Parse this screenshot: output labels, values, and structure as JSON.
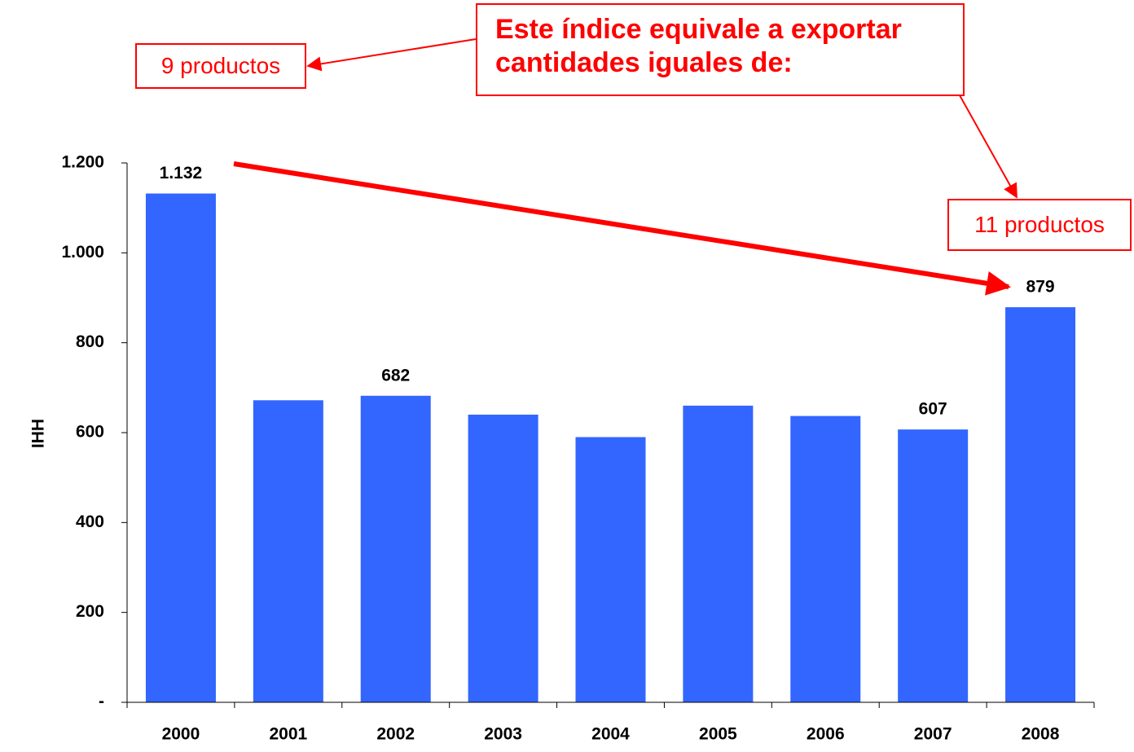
{
  "chart_data": {
    "type": "bar",
    "categories": [
      "2000",
      "2001",
      "2002",
      "2003",
      "2004",
      "2005",
      "2006",
      "2007",
      "2008"
    ],
    "values": [
      1132,
      672,
      682,
      640,
      590,
      660,
      637,
      607,
      879
    ],
    "data_labels": [
      {
        "index": 0,
        "text": "1.132"
      },
      {
        "index": 2,
        "text": "682"
      },
      {
        "index": 7,
        "text": "607"
      },
      {
        "index": 8,
        "text": "879"
      }
    ],
    "ylabel": "IHH",
    "xlabel": "",
    "ylim": [
      0,
      1200
    ],
    "yticks": [
      {
        "value": 0,
        "label": "-"
      },
      {
        "value": 200,
        "label": "200"
      },
      {
        "value": 400,
        "label": "400"
      },
      {
        "value": 600,
        "label": "600"
      },
      {
        "value": 800,
        "label": "800"
      },
      {
        "value": 1000,
        "label": "1.000"
      },
      {
        "value": 1200,
        "label": "1.200"
      }
    ],
    "grid": false,
    "bar_color": "#3366ff",
    "accent_color": "#ff0000"
  },
  "annotations": {
    "main_line1": "Este índice equivale a exportar",
    "main_line2": "cantidades iguales de:",
    "left_box": "9 productos",
    "right_box": "11 productos"
  }
}
